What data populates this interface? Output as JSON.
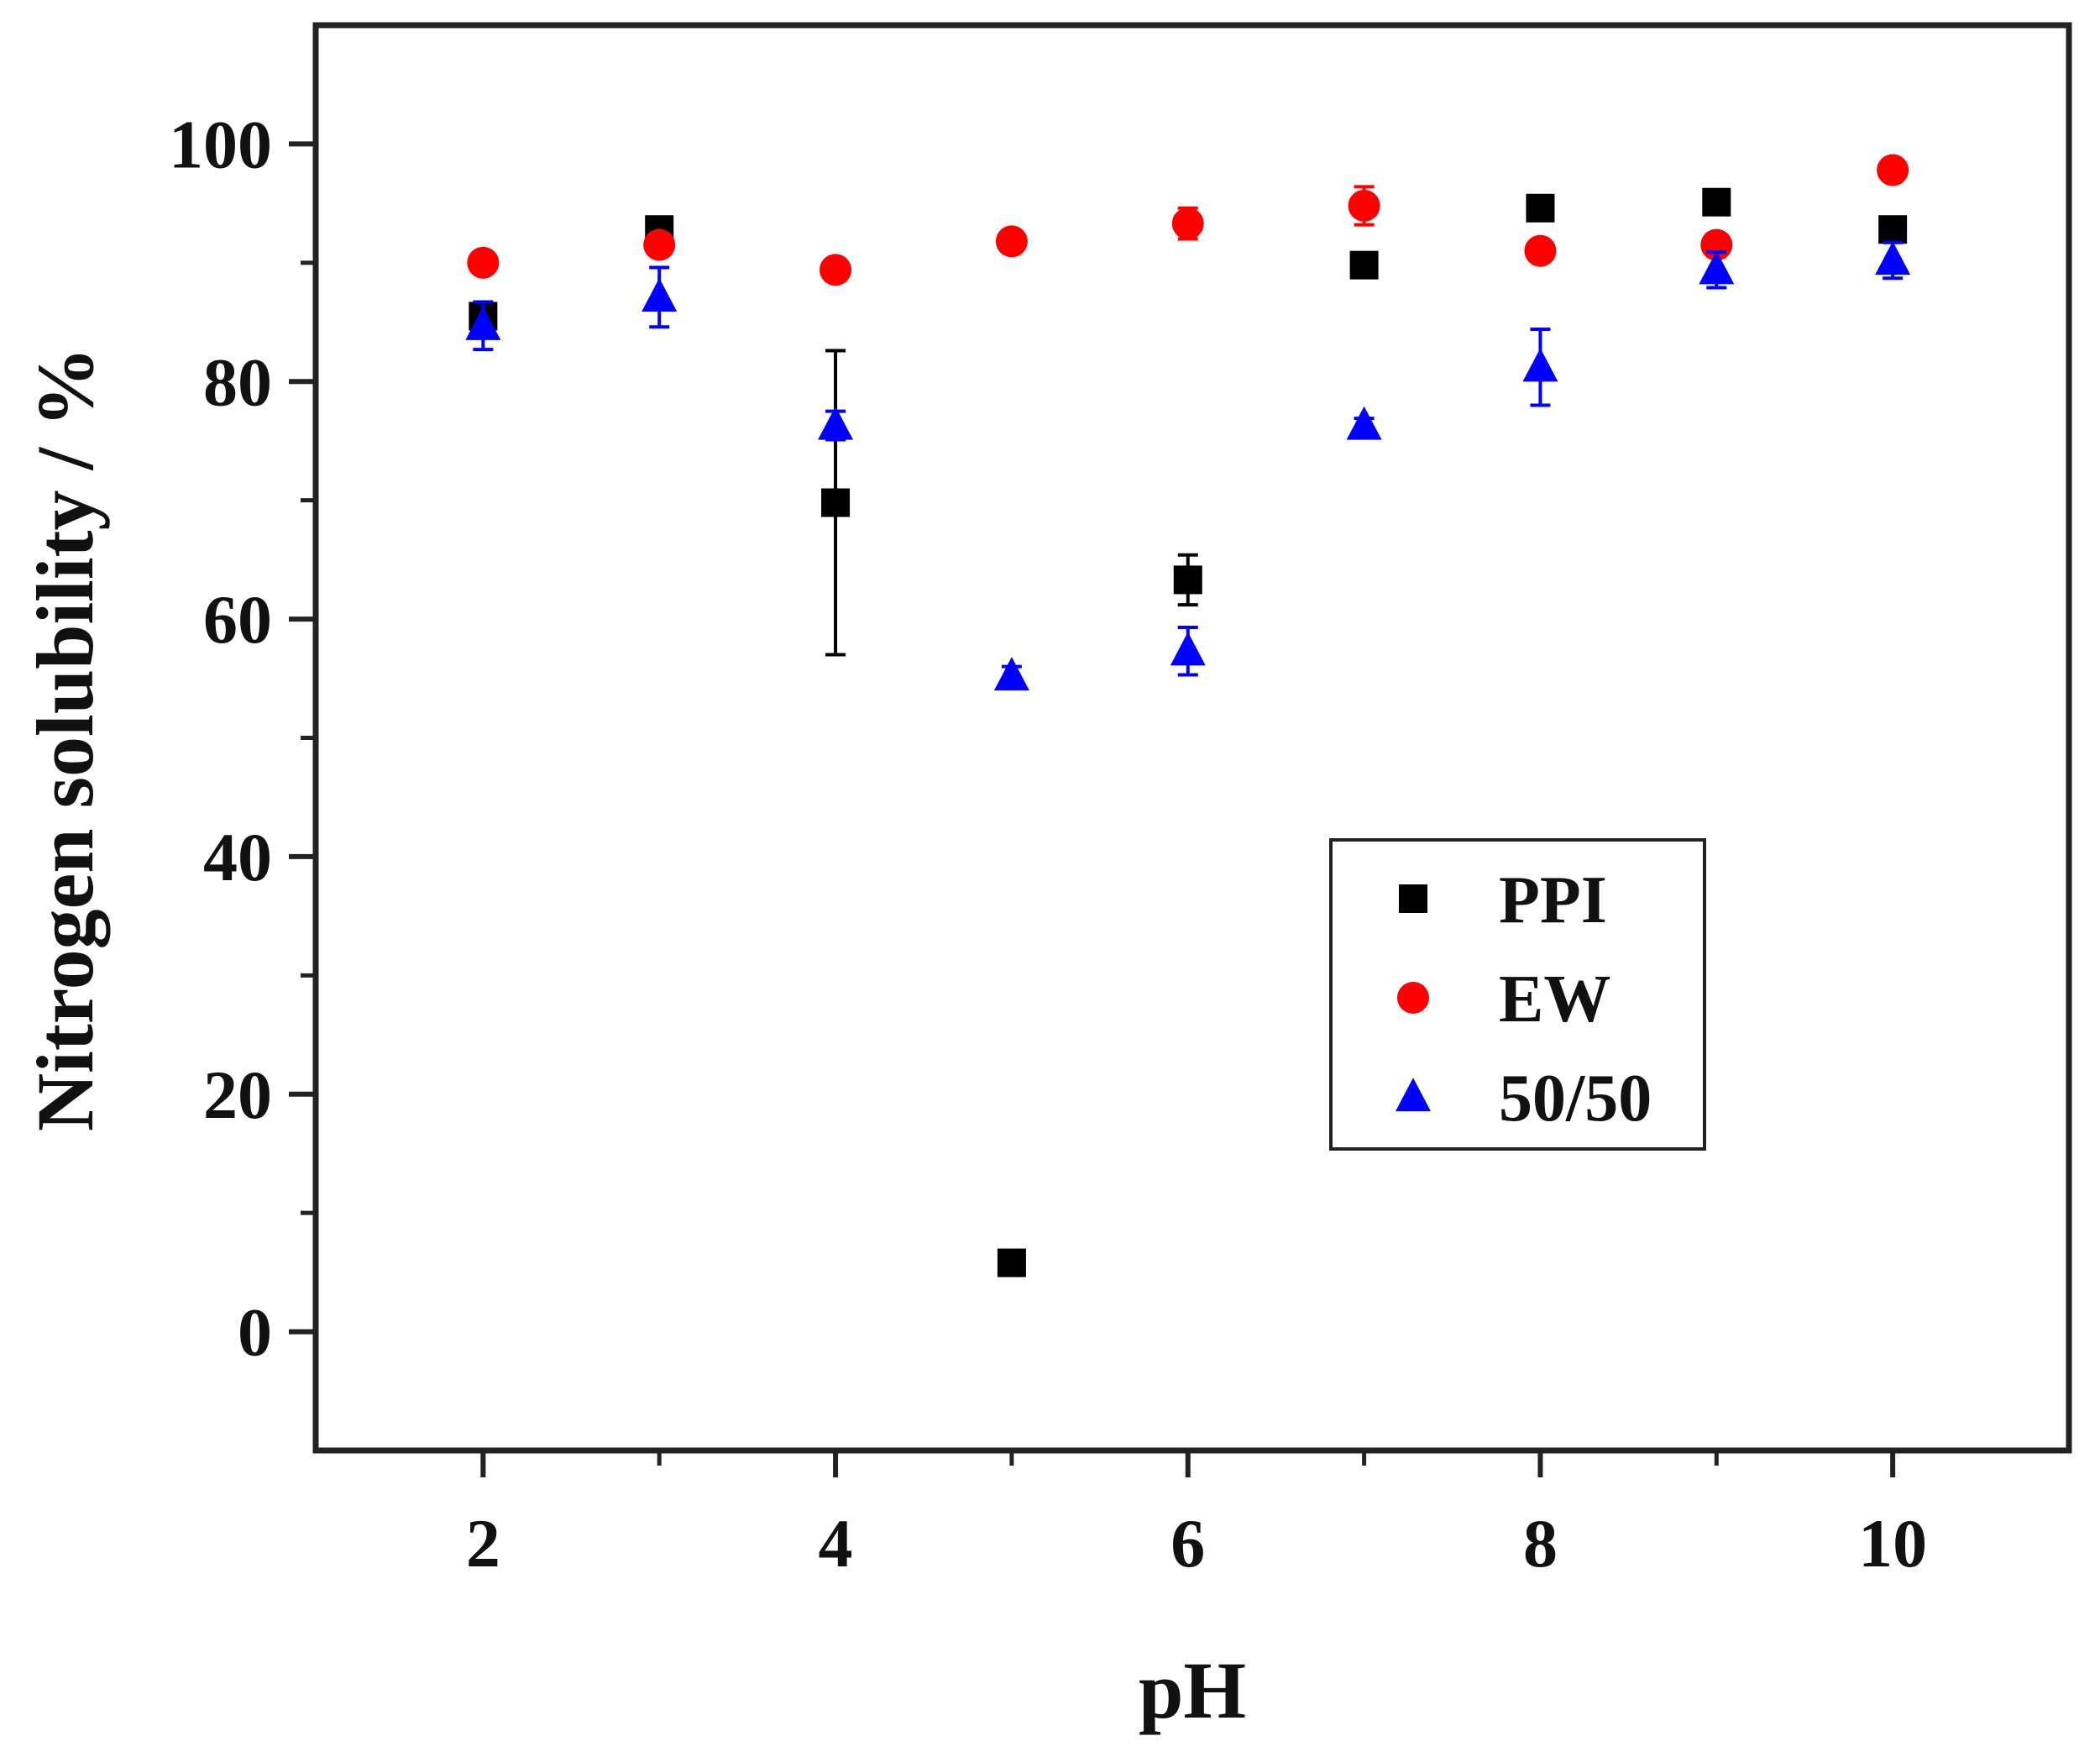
{
  "chart_data": {
    "type": "scatter",
    "title": "",
    "xlabel": "pH",
    "ylabel": "Nitrogen solubility / %",
    "xlim": [
      1.05,
      11.0
    ],
    "ylim": [
      -10,
      110
    ],
    "x_ticks": [
      2,
      4,
      6,
      8,
      10
    ],
    "x_tick_labels": [
      "2",
      "4",
      "6",
      "8",
      "10"
    ],
    "x_minor_ticks": [
      3,
      5,
      7,
      9
    ],
    "y_ticks": [
      0,
      20,
      40,
      60,
      80,
      100
    ],
    "y_tick_labels": [
      "0",
      "20",
      "40",
      "60",
      "80",
      "100"
    ],
    "y_minor_ticks": [
      10,
      30,
      50,
      70,
      90
    ],
    "grid": false,
    "legend_position": "center-right",
    "series": [
      {
        "name": "PPI",
        "marker": "square",
        "color": "#000000",
        "x": [
          2,
          3,
          4,
          5,
          6,
          7,
          8,
          9,
          10
        ],
        "y": [
          85.5,
          92.8,
          69.8,
          5.8,
          63.3,
          89.8,
          94.6,
          95.1,
          92.8
        ],
        "error": [
          0.8,
          0.8,
          12.8,
          0.5,
          2.1,
          0.8,
          0.6,
          0.6,
          0.8
        ]
      },
      {
        "name": "EW",
        "marker": "circle",
        "color": "#ff0000",
        "x": [
          2,
          3,
          4,
          5,
          6,
          7,
          8,
          9,
          10
        ],
        "y": [
          90.0,
          91.5,
          89.4,
          91.8,
          93.3,
          94.8,
          91.0,
          91.5,
          97.8
        ],
        "error": [
          0.8,
          0.8,
          0.6,
          0.6,
          1.3,
          1.6,
          0.6,
          0.6,
          0.6
        ]
      },
      {
        "name": "50/50",
        "marker": "triangle",
        "color": "#0000ff",
        "x": [
          2,
          3,
          4,
          5,
          6,
          7,
          8,
          9,
          10
        ],
        "y": [
          84.7,
          87.1,
          76.3,
          55.2,
          57.3,
          76.3,
          81.2,
          89.4,
          90.2
        ],
        "error": [
          2.0,
          2.5,
          1.2,
          0.8,
          2.0,
          0.6,
          3.2,
          1.5,
          1.5
        ]
      }
    ]
  }
}
